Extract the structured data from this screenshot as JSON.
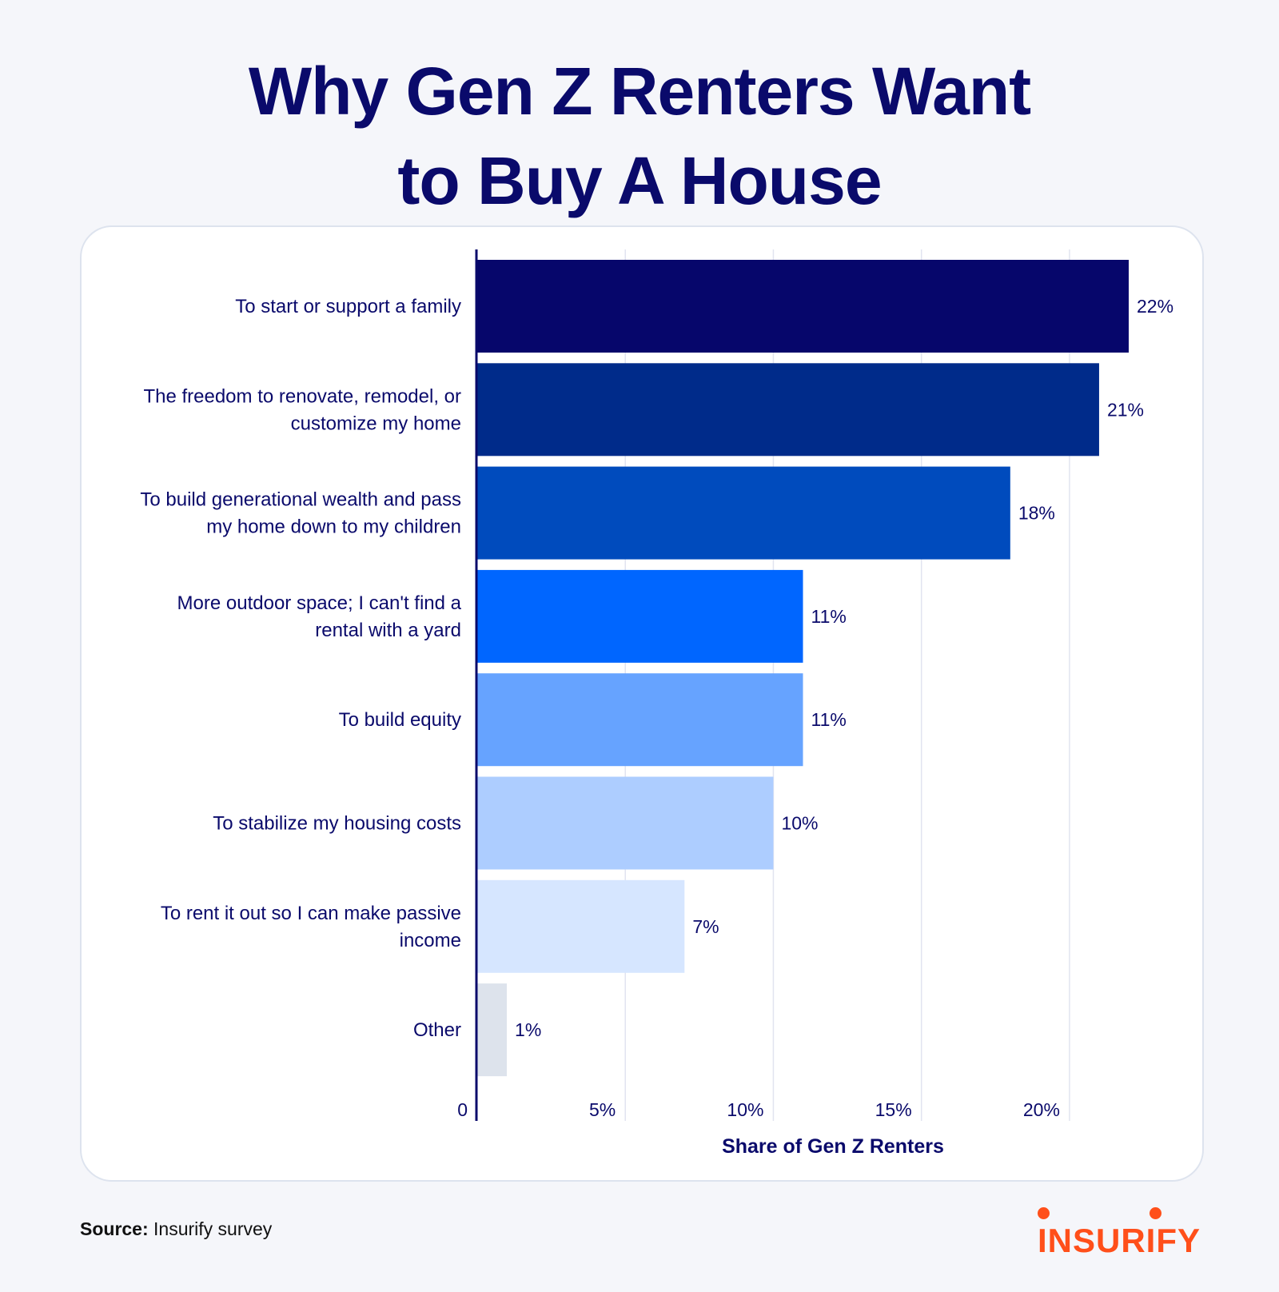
{
  "title": {
    "line1": "Why Gen Z Renters Want",
    "line2": "to Buy A House"
  },
  "source": {
    "label": "Source:",
    "text": "Insurify survey"
  },
  "logo": {
    "text": "INSURIFY",
    "color": "#ff4f1a"
  },
  "chart_data": {
    "type": "bar",
    "orientation": "horizontal",
    "categories": [
      [
        "To start or support a family"
      ],
      [
        "The freedom to renovate, remodel, or",
        "customize my home"
      ],
      [
        "To build generational wealth and pass",
        "my home down to my children"
      ],
      [
        "More outdoor space; I can't find a",
        "rental with a yard"
      ],
      [
        "To build equity"
      ],
      [
        "To stabilize my housing costs"
      ],
      [
        "To rent it out so I can make passive",
        "income"
      ],
      [
        "Other"
      ]
    ],
    "values": [
      22,
      21,
      18,
      11,
      11,
      10,
      7,
      1
    ],
    "value_labels": [
      "22%",
      "21%",
      "18%",
      "11%",
      "11%",
      "10%",
      "7%",
      "1%"
    ],
    "colors": [
      "#06066b",
      "#002b8a",
      "#004bbd",
      "#0066ff",
      "#66a3ff",
      "#adcdff",
      "#d6e6ff",
      "#dde3ec"
    ],
    "xlim": [
      0,
      22.5
    ],
    "xticks": [
      0,
      5,
      10,
      15,
      20
    ],
    "xtick_labels": [
      "0",
      "5%",
      "10%",
      "15%",
      "20%"
    ],
    "xlabel": "Share of Gen Z Renters",
    "grid": true,
    "axis_color": "#0a0a6b",
    "grid_color": "#e1e4f0"
  }
}
